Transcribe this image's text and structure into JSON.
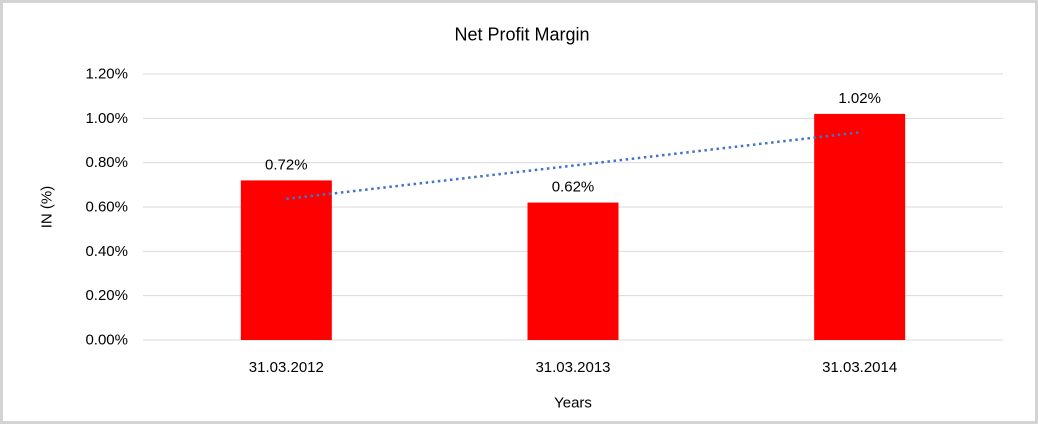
{
  "chart_data": {
    "type": "bar",
    "title": "Net Profit Margin",
    "xlabel": "Years",
    "ylabel": "IN (%)",
    "categories": [
      "31.03.2012",
      "31.03.2013",
      "31.03.2014"
    ],
    "values": [
      0.72,
      0.62,
      1.02
    ],
    "value_labels": [
      "0.72%",
      "0.62%",
      "1.02%"
    ],
    "yticks": [
      "0.00%",
      "0.20%",
      "0.40%",
      "0.60%",
      "0.80%",
      "1.00%",
      "1.20%"
    ],
    "ylim": [
      0,
      1.2
    ],
    "grid": "horizontal",
    "legend": "none",
    "trendline": {
      "type": "linear",
      "style": "dotted",
      "series": "values",
      "endpoints_percent": [
        0.637,
        0.937
      ]
    },
    "colors": {
      "bar": "#ff0000",
      "trendline": "#4472c4",
      "gridline": "#d9d9d9",
      "text": "#000000",
      "frame_border": "#d4d4d4",
      "background": "#ffffff"
    }
  }
}
